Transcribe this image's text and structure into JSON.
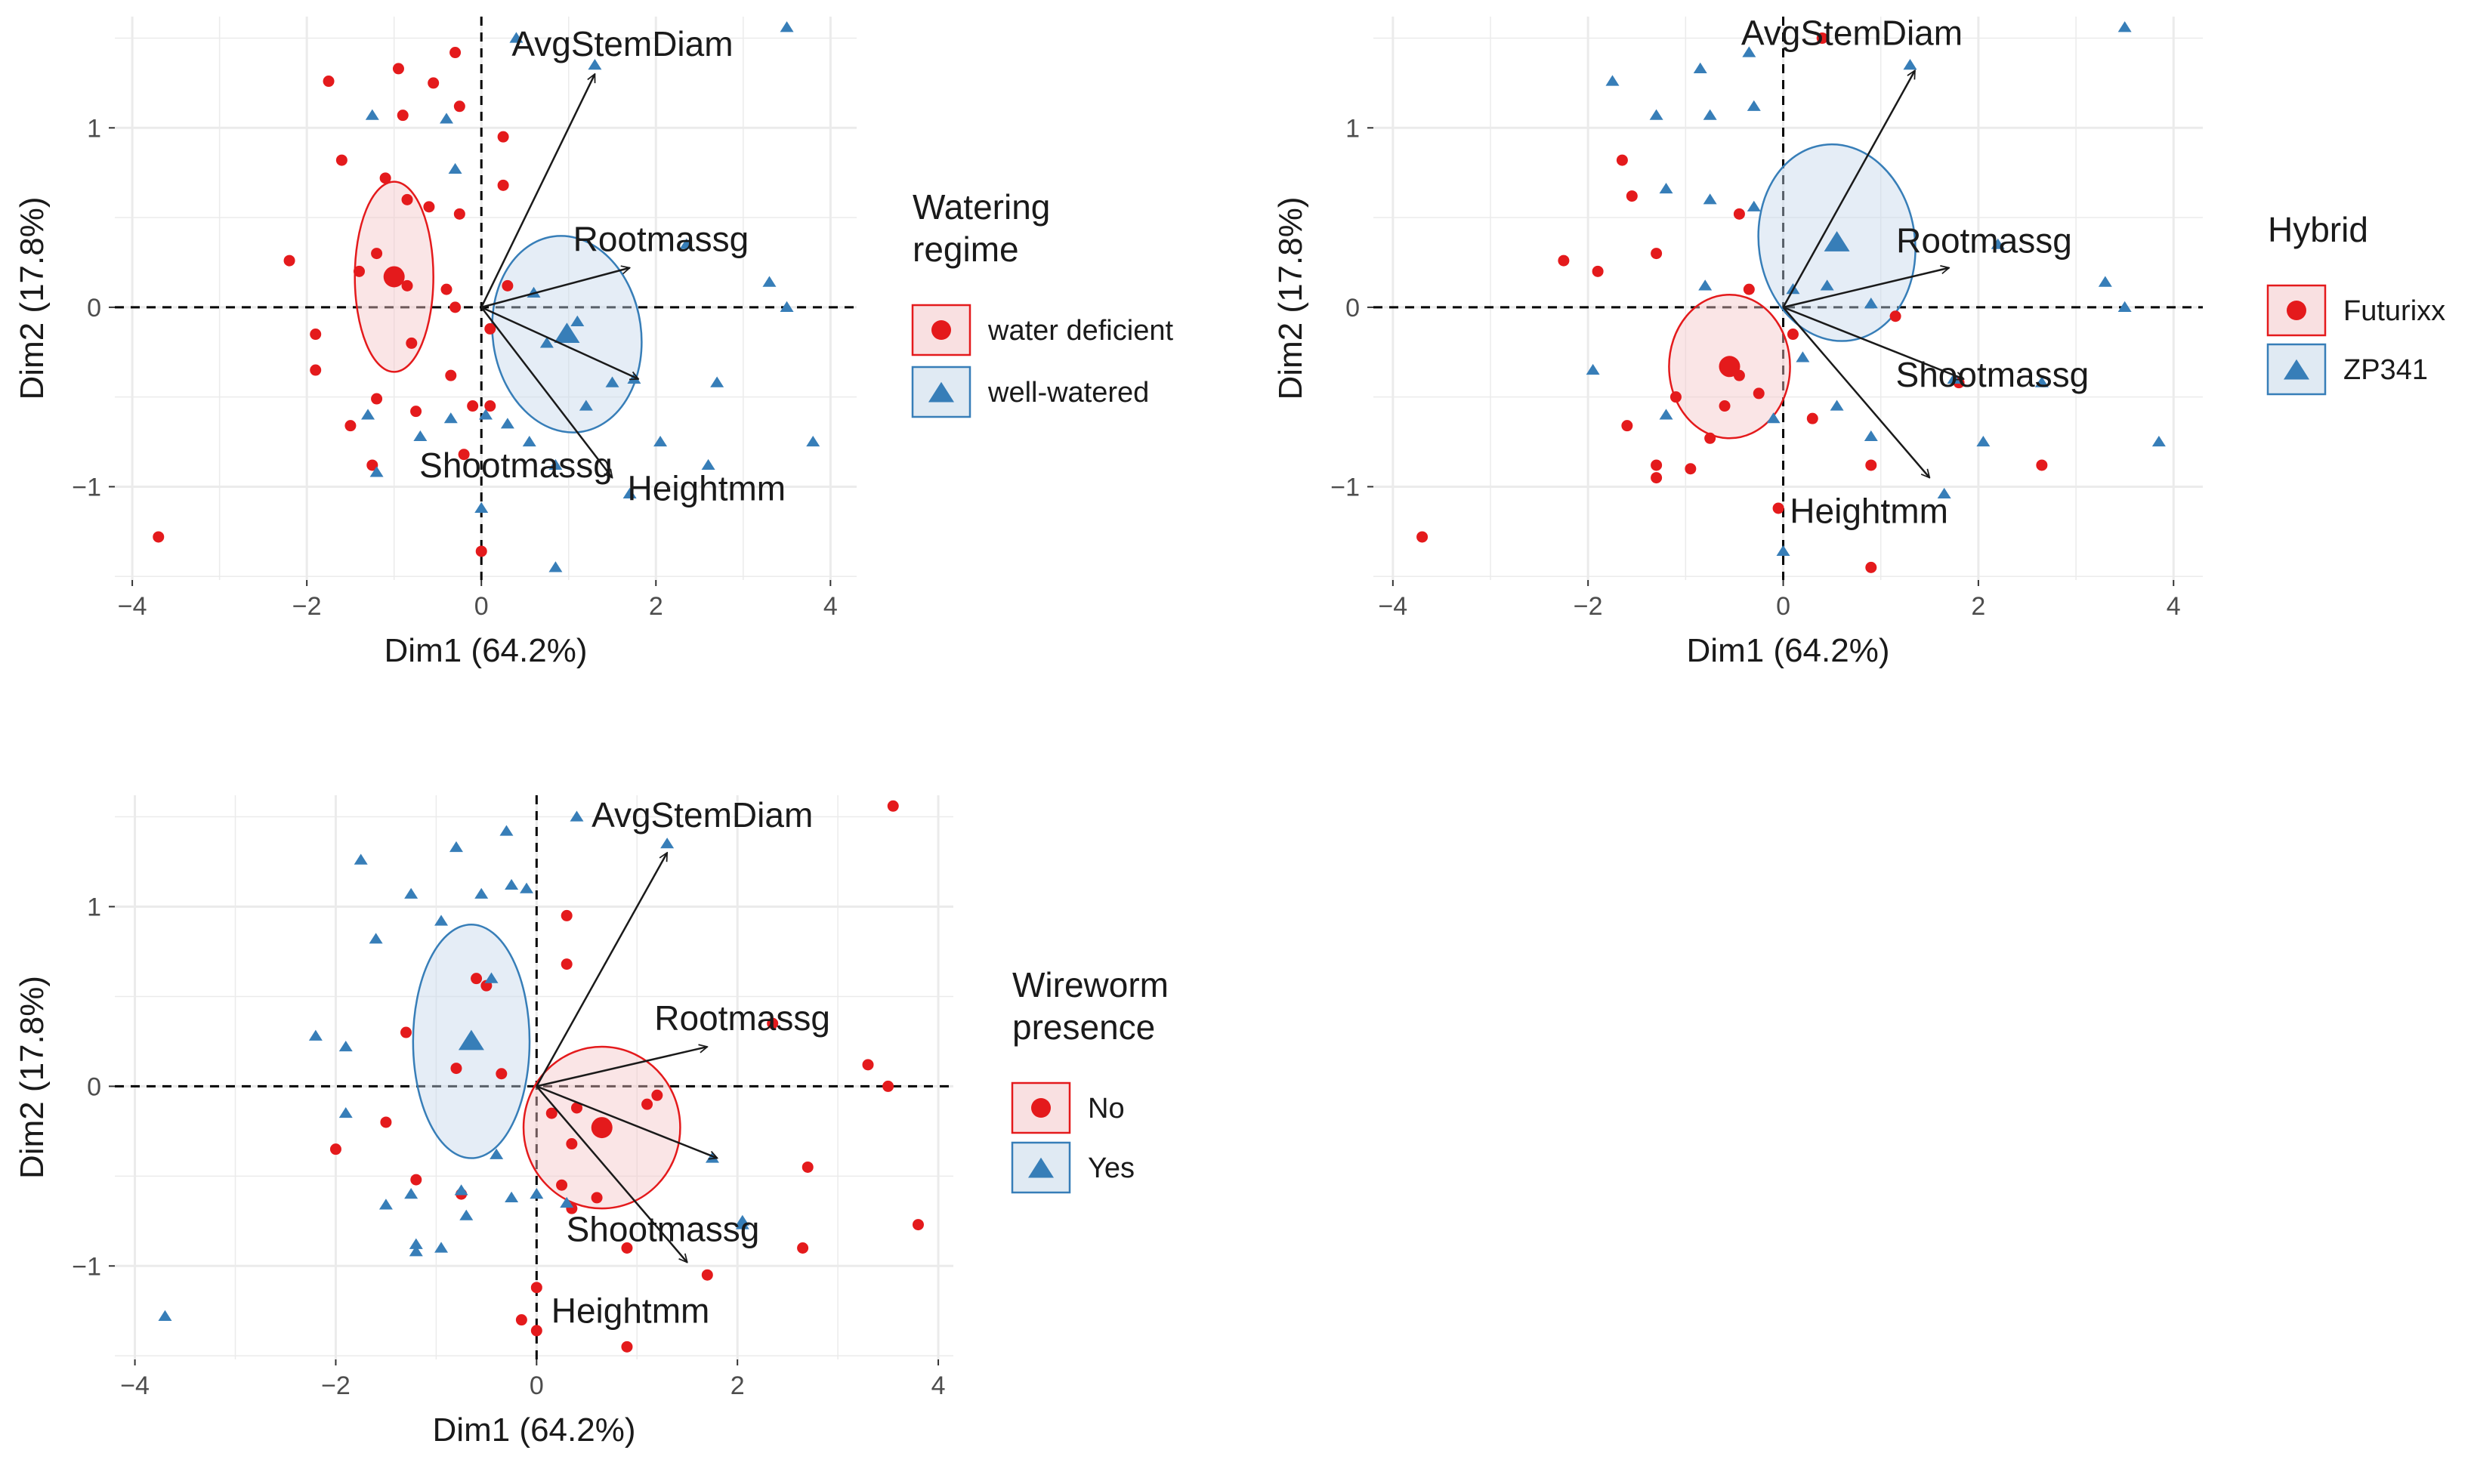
{
  "colors": {
    "group_a": "#e41a1c",
    "group_b": "#377eb8",
    "fill_a": "#f4c6c8",
    "fill_b": "#c6d8ea",
    "grid": "#ebebeb",
    "axis_text": "#4d4d4d",
    "text": "#1a1a1a"
  },
  "chart_data": [
    {
      "type": "scatter",
      "subtype": "pca-biplot",
      "xlabel": "Dim1 (64.2%)",
      "ylabel": "Dim2 (17.8%)",
      "xlim": [
        -4.2,
        4.3
      ],
      "ylim": [
        -1.52,
        1.62
      ],
      "xticks": [
        -4,
        -2,
        0,
        2,
        4
      ],
      "yticks": [
        -1,
        0,
        1
      ],
      "legend": {
        "title_lines": [
          "Watering",
          "regime"
        ],
        "position": "right"
      },
      "variables": [
        {
          "name": "AvgStemDiam",
          "x": 1.3,
          "y": 1.3
        },
        {
          "name": "Rootmassg",
          "x": 1.7,
          "y": 0.22
        },
        {
          "name": "Shootmassg",
          "x": 1.8,
          "y": -0.4
        },
        {
          "name": "Heightmm",
          "x": 1.5,
          "y": -0.95
        }
      ],
      "series": [
        {
          "name": "water deficient",
          "marker": "circle",
          "mean": {
            "x": -1.0,
            "y": 0.17
          },
          "ellipse": {
            "cx": -1.0,
            "cy": 0.17,
            "rx": 0.45,
            "ry": 0.53,
            "angle": 0
          },
          "points": [
            {
              "x": -3.7,
              "y": -1.28
            },
            {
              "x": -2.2,
              "y": 0.26
            },
            {
              "x": -1.9,
              "y": -0.35
            },
            {
              "x": -1.9,
              "y": -0.15
            },
            {
              "x": -1.75,
              "y": 1.26
            },
            {
              "x": -1.6,
              "y": 0.82
            },
            {
              "x": -1.5,
              "y": -0.66
            },
            {
              "x": -1.4,
              "y": 0.2
            },
            {
              "x": -1.2,
              "y": -0.51
            },
            {
              "x": -1.25,
              "y": -0.88
            },
            {
              "x": -1.2,
              "y": 0.3
            },
            {
              "x": -0.95,
              "y": 1.33
            },
            {
              "x": -0.9,
              "y": 1.07
            },
            {
              "x": -0.85,
              "y": 0.12
            },
            {
              "x": -0.8,
              "y": -0.2
            },
            {
              "x": -0.85,
              "y": 0.6
            },
            {
              "x": -0.75,
              "y": -0.58
            },
            {
              "x": -0.6,
              "y": 0.56
            },
            {
              "x": -0.55,
              "y": 1.25
            },
            {
              "x": -0.4,
              "y": 0.1
            },
            {
              "x": -0.35,
              "y": -0.38
            },
            {
              "x": -0.3,
              "y": 1.42
            },
            {
              "x": -0.25,
              "y": 1.12
            },
            {
              "x": -0.3,
              "y": 0.0
            },
            {
              "x": -0.25,
              "y": 0.52
            },
            {
              "x": -0.1,
              "y": -0.55
            },
            {
              "x": 0.1,
              "y": -0.12
            },
            {
              "x": 0.1,
              "y": -0.55
            },
            {
              "x": 0.25,
              "y": 0.95
            },
            {
              "x": 0.25,
              "y": 0.68
            },
            {
              "x": 0.3,
              "y": 0.12
            },
            {
              "x": 0.0,
              "y": -1.36
            },
            {
              "x": -0.2,
              "y": -0.82
            },
            {
              "x": -1.1,
              "y": 0.72
            }
          ]
        },
        {
          "name": "well-watered",
          "marker": "triangle",
          "mean": {
            "x": 0.98,
            "y": -0.15
          },
          "ellipse": {
            "cx": 0.98,
            "cy": -0.15,
            "rx": 0.85,
            "ry": 0.55,
            "angle": 8
          },
          "points": [
            {
              "x": -1.25,
              "y": 1.07
            },
            {
              "x": -1.3,
              "y": -0.6
            },
            {
              "x": -1.2,
              "y": -0.92
            },
            {
              "x": -0.7,
              "y": -0.72
            },
            {
              "x": -0.3,
              "y": 0.77
            },
            {
              "x": -0.4,
              "y": 1.05
            },
            {
              "x": -0.35,
              "y": -0.62
            },
            {
              "x": 0.0,
              "y": -1.12
            },
            {
              "x": 0.05,
              "y": -0.6
            },
            {
              "x": 0.3,
              "y": -0.65
            },
            {
              "x": 0.4,
              "y": 1.5
            },
            {
              "x": 0.55,
              "y": -0.75
            },
            {
              "x": 0.85,
              "y": -0.88
            },
            {
              "x": 0.85,
              "y": -1.45
            },
            {
              "x": 1.3,
              "y": 1.35
            },
            {
              "x": 1.5,
              "y": -0.42
            },
            {
              "x": 1.7,
              "y": -1.04
            },
            {
              "x": 1.75,
              "y": -0.4
            },
            {
              "x": 2.05,
              "y": -0.75
            },
            {
              "x": 2.6,
              "y": -0.88
            },
            {
              "x": 2.7,
              "y": -0.42
            },
            {
              "x": 2.35,
              "y": 0.35
            },
            {
              "x": 3.3,
              "y": 0.14
            },
            {
              "x": 3.5,
              "y": 0.0
            },
            {
              "x": 3.5,
              "y": 1.56
            },
            {
              "x": 3.8,
              "y": -0.75
            },
            {
              "x": 1.1,
              "y": -0.08
            },
            {
              "x": 0.75,
              "y": -0.2
            },
            {
              "x": 1.2,
              "y": -0.55
            },
            {
              "x": 0.6,
              "y": 0.08
            }
          ]
        }
      ]
    },
    {
      "type": "scatter",
      "subtype": "pca-biplot",
      "xlabel": "Dim1 (64.2%)",
      "ylabel": "Dim2 (17.8%)",
      "xlim": [
        -4.2,
        4.3
      ],
      "ylim": [
        -1.52,
        1.62
      ],
      "xticks": [
        -4,
        -2,
        0,
        2,
        4
      ],
      "yticks": [
        -1,
        0,
        1
      ],
      "legend": {
        "title_lines": [
          "Hybrid"
        ],
        "position": "right"
      },
      "variables": [
        {
          "name": "AvgStemDiam",
          "x": 1.35,
          "y": 1.32
        },
        {
          "name": "Rootmassg",
          "x": 1.7,
          "y": 0.22
        },
        {
          "name": "Shootmassg",
          "x": 1.85,
          "y": -0.4
        },
        {
          "name": "Heightmm",
          "x": 1.5,
          "y": -0.95
        }
      ],
      "series": [
        {
          "name": "Futurixx",
          "marker": "circle",
          "mean": {
            "x": -0.55,
            "y": -0.33
          },
          "ellipse": {
            "cx": -0.55,
            "cy": -0.33,
            "rx": 0.62,
            "ry": 0.4,
            "angle": 0
          },
          "points": [
            {
              "x": -3.7,
              "y": -1.28
            },
            {
              "x": -2.25,
              "y": 0.26
            },
            {
              "x": -1.9,
              "y": 0.2
            },
            {
              "x": -1.65,
              "y": 0.82
            },
            {
              "x": -1.6,
              "y": -0.66
            },
            {
              "x": -1.55,
              "y": 0.62
            },
            {
              "x": -1.3,
              "y": 0.3
            },
            {
              "x": -1.3,
              "y": -0.88
            },
            {
              "x": -1.3,
              "y": -0.95
            },
            {
              "x": -1.1,
              "y": -0.5
            },
            {
              "x": -0.95,
              "y": -0.9
            },
            {
              "x": -0.75,
              "y": -0.73
            },
            {
              "x": -0.6,
              "y": -0.55
            },
            {
              "x": -0.45,
              "y": -0.38
            },
            {
              "x": -0.35,
              "y": 0.1
            },
            {
              "x": -0.25,
              "y": -0.48
            },
            {
              "x": 0.1,
              "y": -0.15
            },
            {
              "x": 0.4,
              "y": 1.5
            },
            {
              "x": 0.9,
              "y": -0.88
            },
            {
              "x": 0.9,
              "y": -1.45
            },
            {
              "x": 1.15,
              "y": -0.05
            },
            {
              "x": 1.8,
              "y": -0.42
            },
            {
              "x": 2.65,
              "y": -0.88
            },
            {
              "x": -0.05,
              "y": -1.12
            },
            {
              "x": -0.45,
              "y": 0.52
            },
            {
              "x": 0.3,
              "y": -0.62
            }
          ]
        },
        {
          "name": "ZP341",
          "marker": "triangle",
          "mean": {
            "x": 0.55,
            "y": 0.36
          },
          "ellipse": {
            "cx": 0.55,
            "cy": 0.36,
            "rx": 0.8,
            "ry": 0.55,
            "angle": 8
          },
          "points": [
            {
              "x": -1.75,
              "y": 1.26
            },
            {
              "x": -1.95,
              "y": -0.35
            },
            {
              "x": -1.3,
              "y": 1.07
            },
            {
              "x": -1.2,
              "y": 0.66
            },
            {
              "x": -1.2,
              "y": -0.6
            },
            {
              "x": -0.85,
              "y": 1.33
            },
            {
              "x": -0.8,
              "y": 0.12
            },
            {
              "x": -0.75,
              "y": 1.07
            },
            {
              "x": -0.75,
              "y": 0.6
            },
            {
              "x": -0.35,
              "y": 1.42
            },
            {
              "x": -0.3,
              "y": 1.12
            },
            {
              "x": -0.3,
              "y": 0.56
            },
            {
              "x": -0.1,
              "y": -0.62
            },
            {
              "x": 0.0,
              "y": -1.36
            },
            {
              "x": 0.1,
              "y": 0.1
            },
            {
              "x": 0.55,
              "y": -0.55
            },
            {
              "x": 0.9,
              "y": -0.72
            },
            {
              "x": 1.3,
              "y": 1.35
            },
            {
              "x": 1.65,
              "y": -1.04
            },
            {
              "x": 1.75,
              "y": -0.4
            },
            {
              "x": 2.05,
              "y": -0.75
            },
            {
              "x": 2.65,
              "y": -0.42
            },
            {
              "x": 2.2,
              "y": 0.35
            },
            {
              "x": 3.3,
              "y": 0.14
            },
            {
              "x": 3.5,
              "y": 0.0
            },
            {
              "x": 3.5,
              "y": 1.56
            },
            {
              "x": 3.85,
              "y": -0.75
            },
            {
              "x": 0.45,
              "y": 0.12
            },
            {
              "x": 0.9,
              "y": 0.02
            },
            {
              "x": 0.2,
              "y": -0.28
            }
          ]
        }
      ]
    },
    {
      "type": "scatter",
      "subtype": "pca-biplot",
      "xlabel": "Dim1 (64.2%)",
      "ylabel": "Dim2 (17.8%)",
      "xlim": [
        -4.2,
        4.15
      ],
      "ylim": [
        -1.52,
        1.62
      ],
      "xticks": [
        -4,
        -2,
        0,
        2,
        4
      ],
      "yticks": [
        -1,
        0,
        1
      ],
      "legend": {
        "title_lines": [
          "Wireworm",
          "presence"
        ],
        "position": "right"
      },
      "variables": [
        {
          "name": "AvgStemDiam",
          "x": 1.3,
          "y": 1.3
        },
        {
          "name": "Rootmassg",
          "x": 1.7,
          "y": 0.22
        },
        {
          "name": "Shootmassg",
          "x": 1.8,
          "y": -0.4
        },
        {
          "name": "Heightmm",
          "x": 1.5,
          "y": -0.98
        }
      ],
      "series": [
        {
          "name": "No",
          "marker": "circle",
          "mean": {
            "x": 0.65,
            "y": -0.23
          },
          "ellipse": {
            "cx": 0.65,
            "cy": -0.23,
            "rx": 0.78,
            "ry": 0.45,
            "angle": 0
          },
          "points": [
            {
              "x": -2.0,
              "y": -0.35
            },
            {
              "x": -1.5,
              "y": -0.2
            },
            {
              "x": -1.2,
              "y": -0.52
            },
            {
              "x": -1.3,
              "y": 0.3
            },
            {
              "x": -0.8,
              "y": 0.1
            },
            {
              "x": -0.6,
              "y": 0.6
            },
            {
              "x": -0.5,
              "y": 0.56
            },
            {
              "x": -0.35,
              "y": 0.07
            },
            {
              "x": -0.75,
              "y": -0.6
            },
            {
              "x": -0.15,
              "y": -1.3
            },
            {
              "x": 0.0,
              "y": -1.12
            },
            {
              "x": 0.0,
              "y": -1.36
            },
            {
              "x": 0.15,
              "y": -0.15
            },
            {
              "x": 0.25,
              "y": -0.55
            },
            {
              "x": 0.3,
              "y": 0.95
            },
            {
              "x": 0.3,
              "y": 0.68
            },
            {
              "x": 0.35,
              "y": -0.68
            },
            {
              "x": 0.35,
              "y": -0.32
            },
            {
              "x": 0.6,
              "y": -0.62
            },
            {
              "x": 0.9,
              "y": -0.9
            },
            {
              "x": 0.9,
              "y": -1.45
            },
            {
              "x": 1.1,
              "y": -0.1
            },
            {
              "x": 1.2,
              "y": -0.05
            },
            {
              "x": 1.7,
              "y": -1.05
            },
            {
              "x": 2.35,
              "y": 0.35
            },
            {
              "x": 2.65,
              "y": -0.9
            },
            {
              "x": 2.7,
              "y": -0.45
            },
            {
              "x": 3.3,
              "y": 0.12
            },
            {
              "x": 3.5,
              "y": 0.0
            },
            {
              "x": 3.55,
              "y": 1.56
            },
            {
              "x": 3.8,
              "y": -0.77
            },
            {
              "x": 0.4,
              "y": -0.12
            }
          ]
        },
        {
          "name": "Yes",
          "marker": "triangle",
          "mean": {
            "x": -0.65,
            "y": 0.25
          },
          "ellipse": {
            "cx": -0.65,
            "cy": 0.25,
            "rx": 0.58,
            "ry": 0.65,
            "angle": 0
          },
          "points": [
            {
              "x": -3.7,
              "y": -1.28
            },
            {
              "x": -2.2,
              "y": 0.28
            },
            {
              "x": -1.9,
              "y": 0.22
            },
            {
              "x": -1.9,
              "y": -0.15
            },
            {
              "x": -1.75,
              "y": 1.26
            },
            {
              "x": -1.6,
              "y": 0.82
            },
            {
              "x": -1.5,
              "y": -0.66
            },
            {
              "x": -1.25,
              "y": 1.07
            },
            {
              "x": -1.2,
              "y": -0.92
            },
            {
              "x": -1.2,
              "y": -0.88
            },
            {
              "x": -1.25,
              "y": -0.6
            },
            {
              "x": -0.95,
              "y": 0.92
            },
            {
              "x": -0.95,
              "y": -0.9
            },
            {
              "x": -0.8,
              "y": 1.33
            },
            {
              "x": -0.75,
              "y": -0.58
            },
            {
              "x": -0.7,
              "y": -0.72
            },
            {
              "x": -0.55,
              "y": 1.07
            },
            {
              "x": -0.45,
              "y": 0.6
            },
            {
              "x": -0.4,
              "y": -0.38
            },
            {
              "x": -0.3,
              "y": 1.42
            },
            {
              "x": -0.25,
              "y": 1.12
            },
            {
              "x": -0.25,
              "y": -0.62
            },
            {
              "x": -0.1,
              "y": 1.1
            },
            {
              "x": 0.0,
              "y": -0.6
            },
            {
              "x": 0.3,
              "y": -0.65
            },
            {
              "x": 0.4,
              "y": 1.5
            },
            {
              "x": 1.3,
              "y": 1.35
            },
            {
              "x": 1.75,
              "y": -0.4
            },
            {
              "x": 2.05,
              "y": -0.75
            },
            {
              "x": 2.05,
              "y": -0.77
            }
          ]
        }
      ]
    }
  ]
}
